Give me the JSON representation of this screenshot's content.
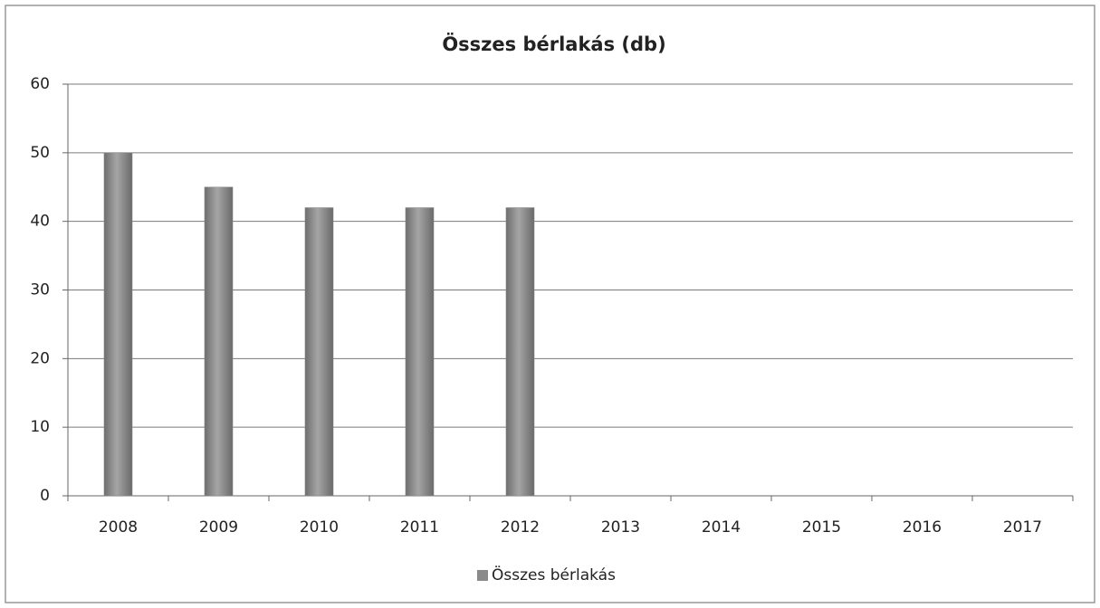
{
  "chart_data": {
    "type": "bar",
    "title": "Összes bérlakás (db)",
    "categories": [
      "2008",
      "2009",
      "2010",
      "2011",
      "2012",
      "2013",
      "2014",
      "2015",
      "2016",
      "2017"
    ],
    "series": [
      {
        "name": "Összes bérlakás",
        "color": "#8a8a8a",
        "values": [
          50,
          45,
          42,
          42,
          42,
          null,
          null,
          null,
          null,
          null
        ]
      }
    ],
    "ylim": [
      0,
      60
    ],
    "yticks": [
      0,
      10,
      20,
      30,
      40,
      50,
      60
    ],
    "grid": true,
    "legend": "bottom"
  }
}
